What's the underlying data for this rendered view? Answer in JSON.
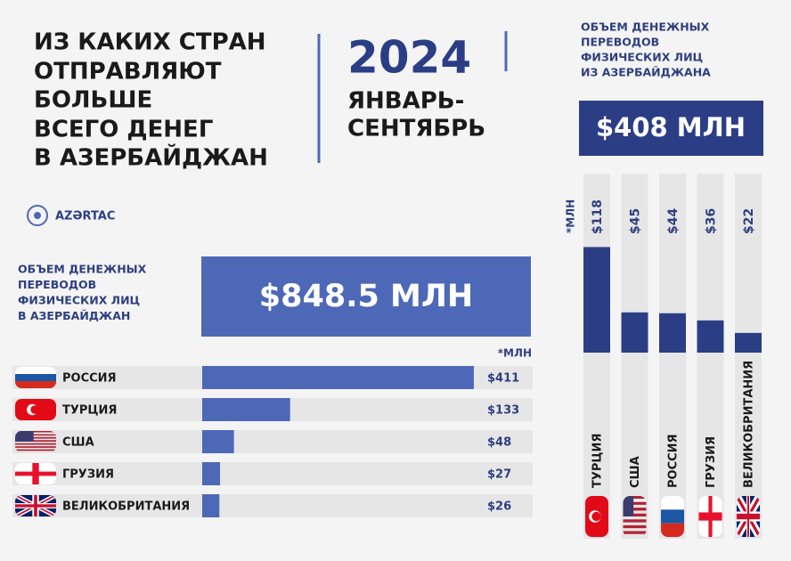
{
  "header": {
    "title": [
      "ИЗ КАКИХ СТРАН",
      "ОТПРАВЛЯЮТ",
      "БОЛЬШЕ",
      "ВСЕГО ДЕНЕГ",
      "В АЗЕРБАЙДЖАН"
    ],
    "year": "2024",
    "period": [
      "ЯНВАРЬ-",
      "СЕНТЯБРЬ"
    ],
    "logo": "AZƏRTAC"
  },
  "chart_data": [
    {
      "type": "hbar",
      "title": [
        "ОБЪЕМ ДЕНЕЖНЫХ",
        "ПЕРЕВОДОВ",
        "ФИЗИЧЕСКИХ ЛИЦ",
        "В АЗЕРБАЙДЖАН"
      ],
      "total": 848.5,
      "total_label": "$848.5 МЛН",
      "unit": "*МЛН",
      "categories": [
        "РОССИЯ",
        "ТУРЦИЯ",
        "США",
        "ГРУЗИЯ",
        "ВЕЛИКОБРИТАНИЯ"
      ],
      "values": [
        411,
        133,
        48,
        27,
        26
      ],
      "value_labels": [
        "$411",
        "$133",
        "$48",
        "$27",
        "$26"
      ],
      "color": "#4e68b8",
      "xlim": [
        0,
        500
      ]
    },
    {
      "type": "vbar",
      "title": [
        "ОБЪЕМ ДЕНЕЖНЫХ",
        "ПЕРЕВОДОВ",
        "ФИЗИЧЕСКИХ ЛИЦ",
        "ИЗ АЗЕРБАЙДЖАНА"
      ],
      "total": 408,
      "total_label": "$408 МЛН",
      "unit": "*МЛН",
      "categories": [
        "ТУРЦИЯ",
        "США",
        "РОССИЯ",
        "ГРУЗИЯ",
        "ВЕЛИКОБРИТАНИЯ"
      ],
      "values": [
        118,
        45,
        44,
        36,
        22
      ],
      "value_labels": [
        "$118",
        "$45",
        "$44",
        "$36",
        "$22"
      ],
      "color": "#2b3e85",
      "ylim": [
        0,
        200
      ]
    }
  ]
}
